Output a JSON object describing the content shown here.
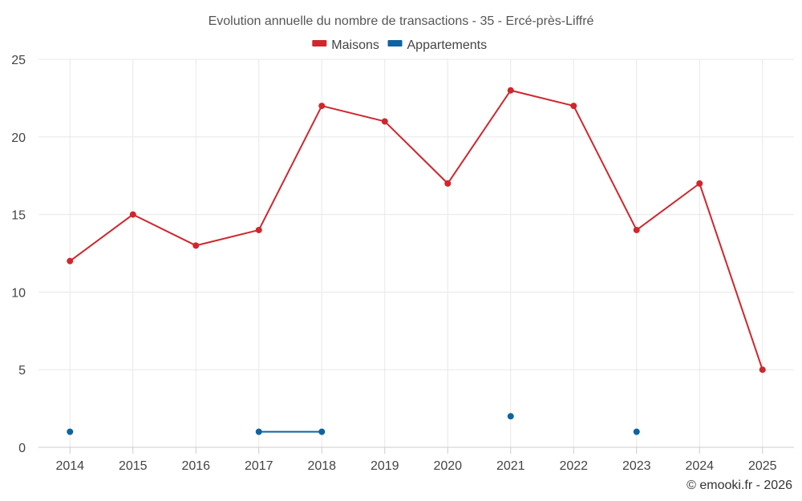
{
  "chart_data": {
    "type": "line",
    "title": "Evolution annuelle du nombre de transactions - 35 - Ercé-près-Liffré",
    "categories": [
      "2014",
      "2015",
      "2016",
      "2017",
      "2018",
      "2019",
      "2020",
      "2021",
      "2022",
      "2023",
      "2024",
      "2025"
    ],
    "series": [
      {
        "name": "Maisons",
        "color": "#d0262d",
        "values": [
          12,
          15,
          13,
          14,
          22,
          21,
          17,
          23,
          22,
          14,
          17,
          5
        ]
      },
      {
        "name": "Appartements",
        "color": "#0e64a0",
        "values": [
          1,
          null,
          null,
          1,
          1,
          null,
          null,
          2,
          null,
          1,
          null,
          null
        ]
      }
    ],
    "ylim": [
      0,
      25
    ],
    "yticks": [
      "0",
      "5",
      "10",
      "15",
      "20",
      "25"
    ],
    "xlabel": "",
    "ylabel": "",
    "grid": true,
    "legend_position": "top-center"
  },
  "credit": "© emooki.fr - 2026"
}
